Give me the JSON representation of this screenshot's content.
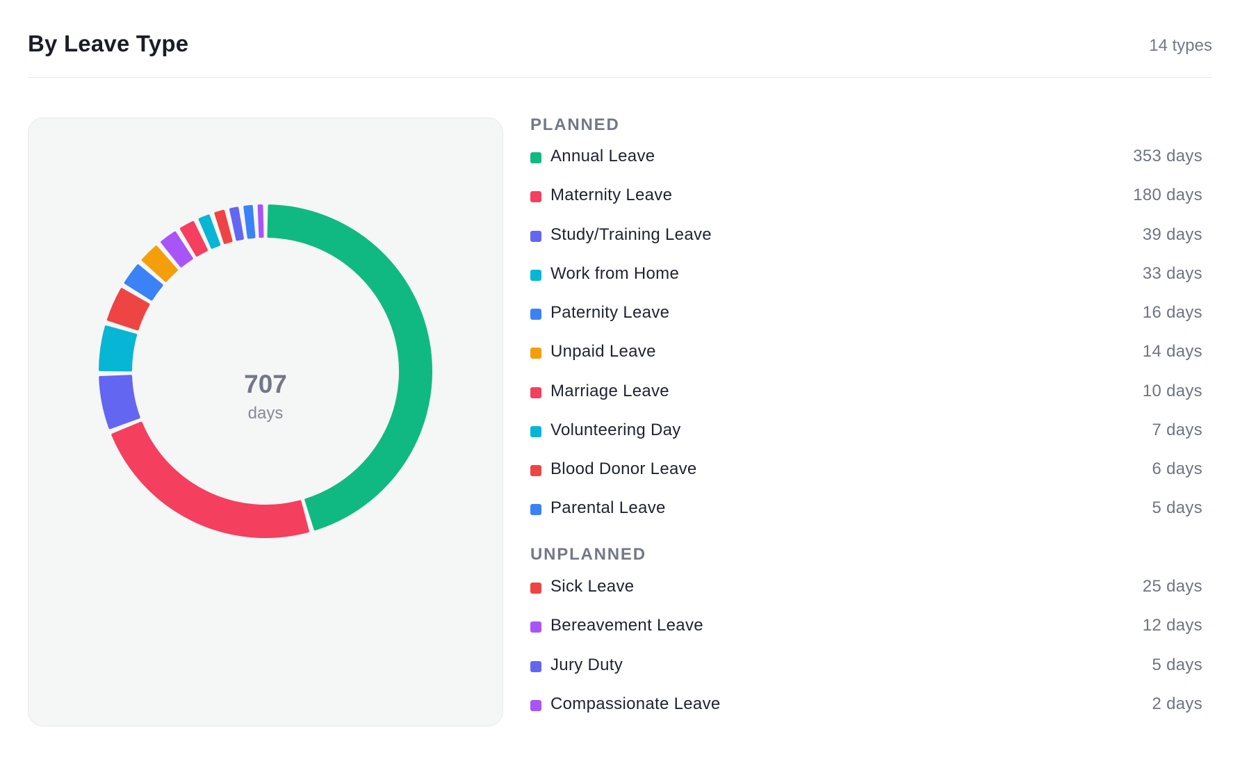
{
  "header": {
    "title": "By Leave Type",
    "type_count": "14 types"
  },
  "colors": {
    "green": "#10b981",
    "rose": "#f43f5e",
    "indigo": "#6366f1",
    "cyan": "#06b6d4",
    "blue": "#3b82f6",
    "amber": "#f59e0b",
    "red": "#ef4444",
    "purple": "#a855f7"
  },
  "chart_data": {
    "type": "pie",
    "style": "donut",
    "center_value": "707",
    "center_label": "days",
    "unit": "days",
    "series": [
      {
        "name": "Annual Leave",
        "value": 353,
        "color": "#10b981"
      },
      {
        "name": "Maternity Leave",
        "value": 180,
        "color": "#f43f5e"
      },
      {
        "name": "Study/Training Leave",
        "value": 39,
        "color": "#6366f1"
      },
      {
        "name": "Work from Home",
        "value": 33,
        "color": "#06b6d4"
      },
      {
        "name": "Sick Leave",
        "value": 25,
        "color": "#ef4444"
      },
      {
        "name": "Paternity Leave",
        "value": 16,
        "color": "#3b82f6"
      },
      {
        "name": "Unpaid Leave",
        "value": 14,
        "color": "#f59e0b"
      },
      {
        "name": "Bereavement Leave",
        "value": 12,
        "color": "#a855f7"
      },
      {
        "name": "Marriage Leave",
        "value": 10,
        "color": "#f43f5e"
      },
      {
        "name": "Volunteering Day",
        "value": 7,
        "color": "#06b6d4"
      },
      {
        "name": "Blood Donor Leave",
        "value": 6,
        "color": "#ef4444"
      },
      {
        "name": "Jury Duty",
        "value": 5,
        "color": "#6366f1"
      },
      {
        "name": "Parental Leave",
        "value": 5,
        "color": "#3b82f6"
      },
      {
        "name": "Compassionate Leave",
        "value": 2,
        "color": "#a855f7"
      }
    ]
  },
  "legend": {
    "groups": [
      {
        "title": "PLANNED",
        "items": [
          {
            "label": "Annual Leave",
            "value": "353 days",
            "color": "#10b981"
          },
          {
            "label": "Maternity Leave",
            "value": "180 days",
            "color": "#f43f5e"
          },
          {
            "label": "Study/Training Leave",
            "value": "39 days",
            "color": "#6366f1"
          },
          {
            "label": "Work from Home",
            "value": "33 days",
            "color": "#06b6d4"
          },
          {
            "label": "Paternity Leave",
            "value": "16 days",
            "color": "#3b82f6"
          },
          {
            "label": "Unpaid Leave",
            "value": "14 days",
            "color": "#f59e0b"
          },
          {
            "label": "Marriage Leave",
            "value": "10 days",
            "color": "#f43f5e"
          },
          {
            "label": "Volunteering Day",
            "value": "7 days",
            "color": "#06b6d4"
          },
          {
            "label": "Blood Donor Leave",
            "value": "6 days",
            "color": "#ef4444"
          },
          {
            "label": "Parental Leave",
            "value": "5 days",
            "color": "#3b82f6"
          }
        ]
      },
      {
        "title": "UNPLANNED",
        "items": [
          {
            "label": "Sick Leave",
            "value": "25 days",
            "color": "#ef4444"
          },
          {
            "label": "Bereavement Leave",
            "value": "12 days",
            "color": "#a855f7"
          },
          {
            "label": "Jury Duty",
            "value": "5 days",
            "color": "#6366f1"
          },
          {
            "label": "Compassionate Leave",
            "value": "2 days",
            "color": "#a855f7"
          }
        ]
      }
    ]
  }
}
